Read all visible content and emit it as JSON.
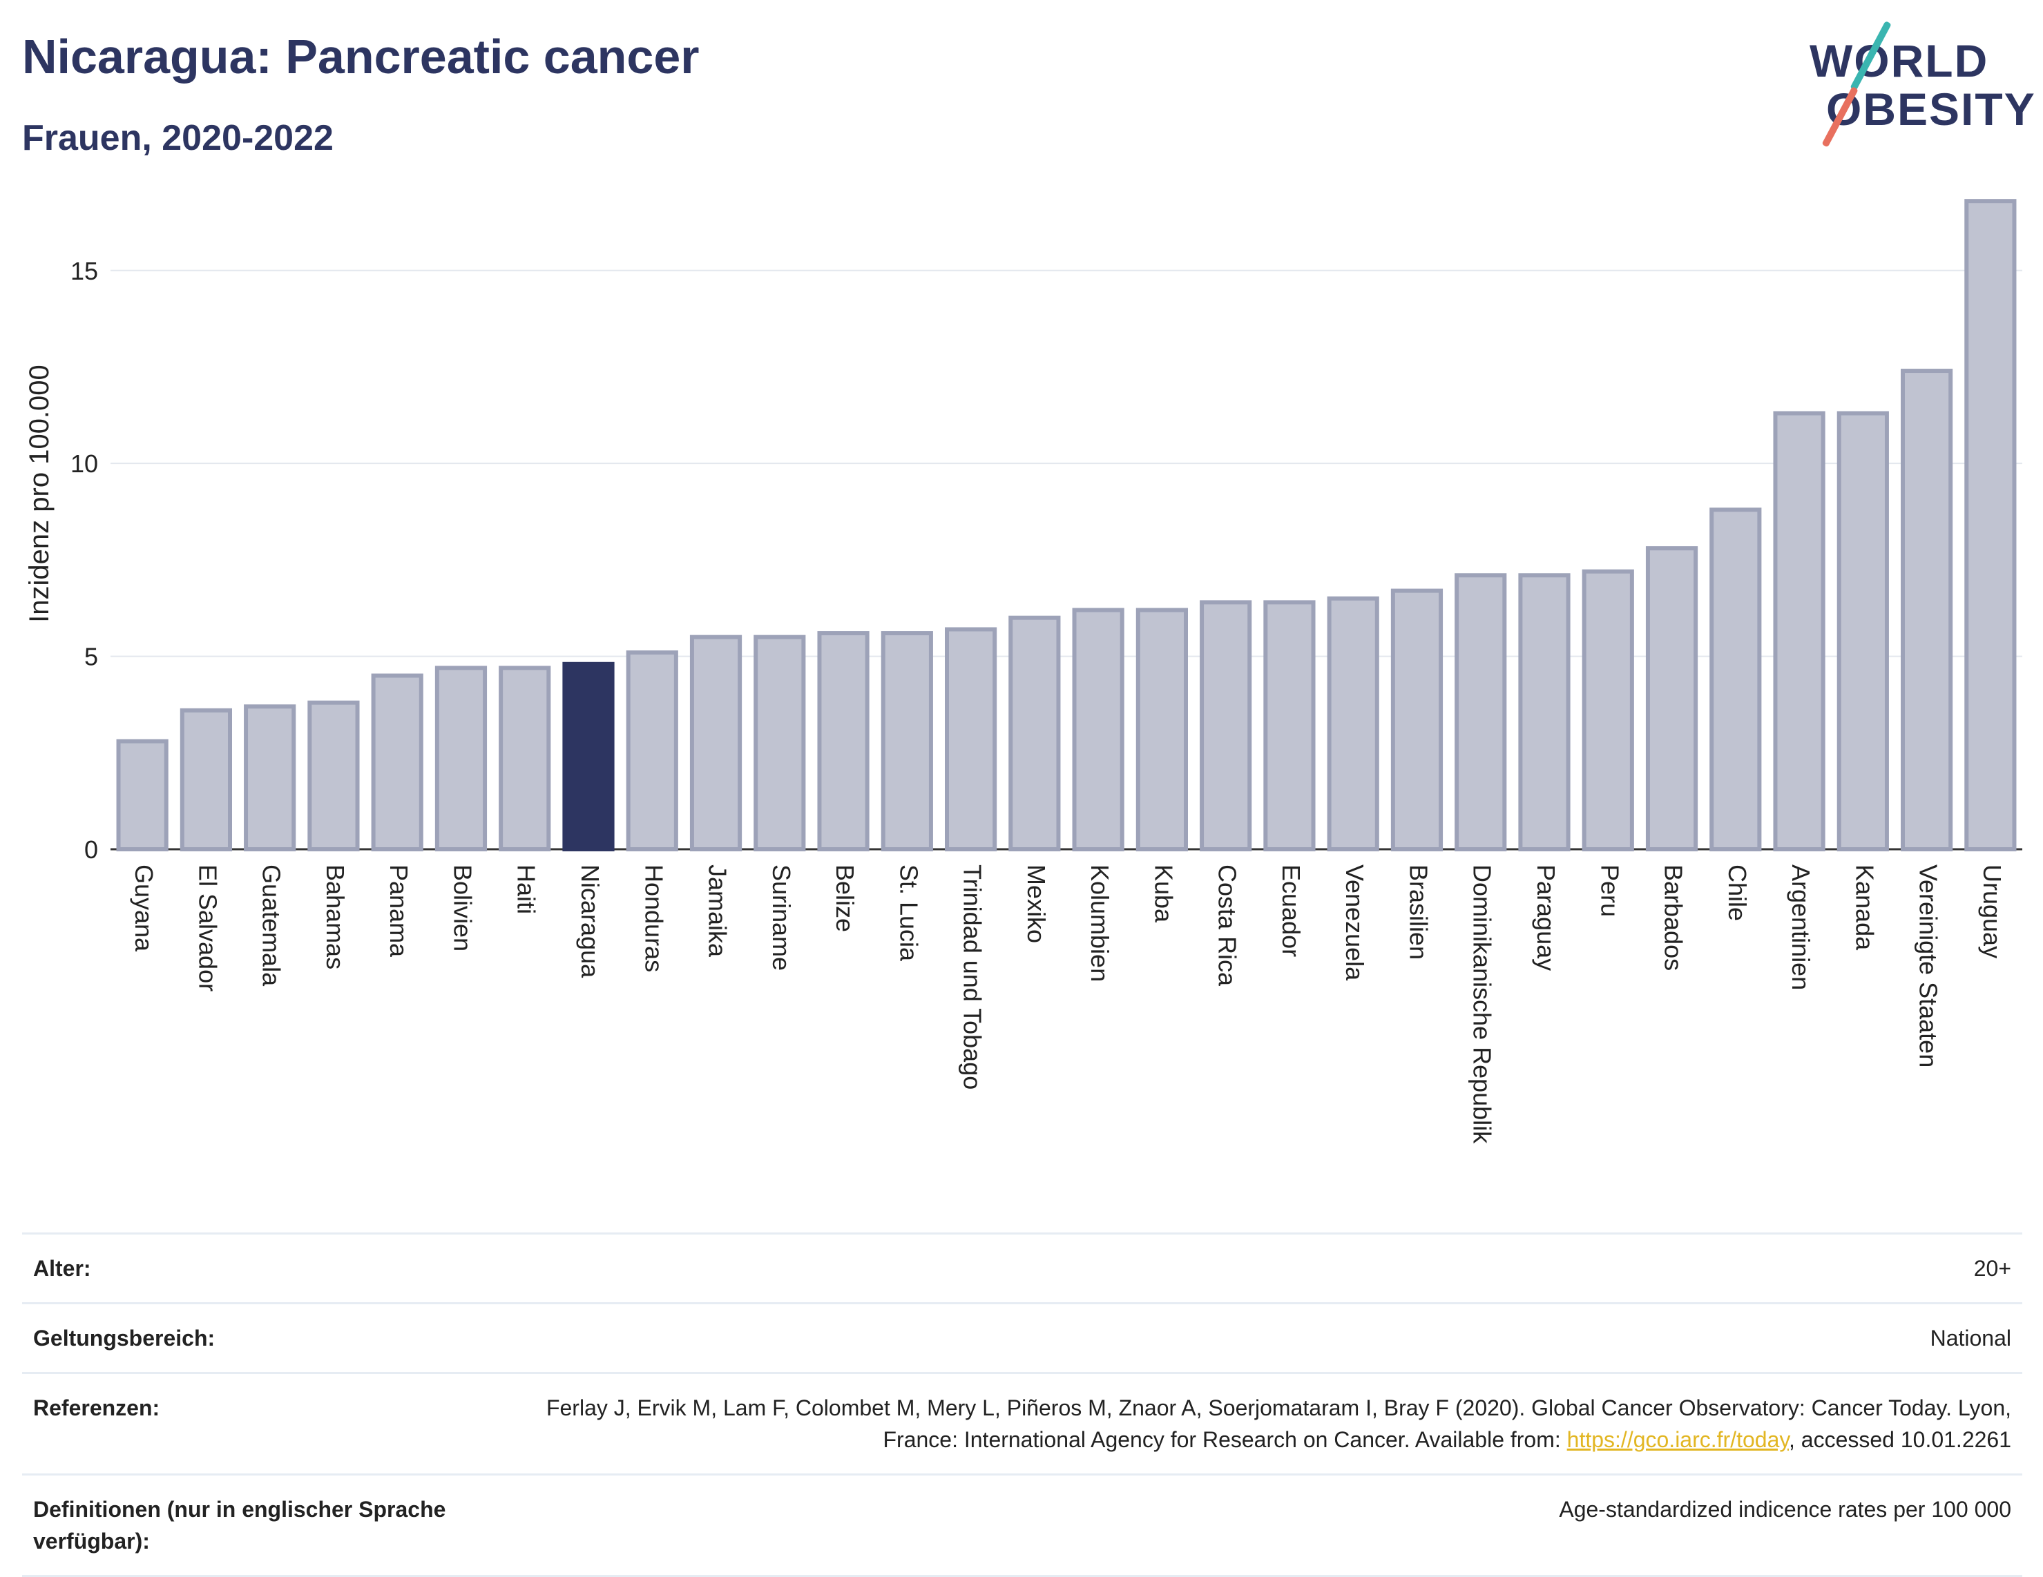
{
  "header": {
    "title": "Nicaragua: Pancreatic cancer",
    "subtitle": "Frauen, 2020-2022"
  },
  "logo": {
    "line1": "WORLD",
    "line2": "OBESITY",
    "accent_colors": [
      "#3ab5b0",
      "#e8705e"
    ]
  },
  "chart_data": {
    "type": "bar",
    "ylabel": "Inzidenz pro 100.000",
    "ylim": [
      0,
      17
    ],
    "yticks": [
      0,
      5,
      10,
      15
    ],
    "grid": true,
    "highlight": "Nicaragua",
    "colors": {
      "bar": "#c0c3d1",
      "bar_border": "#9da2b8",
      "highlight": "#2d3561"
    },
    "categories": [
      "Guyana",
      "El Salvador",
      "Guatemala",
      "Bahamas",
      "Panama",
      "Bolivien",
      "Haiti",
      "Nicaragua",
      "Honduras",
      "Jamaika",
      "Suriname",
      "Belize",
      "St. Lucia",
      "Trinidad und Tobago",
      "Mexiko",
      "Kolumbien",
      "Kuba",
      "Costa Rica",
      "Ecuador",
      "Venezuela",
      "Brasilien",
      "Dominikanische Republik",
      "Paraguay",
      "Peru",
      "Barbados",
      "Chile",
      "Argentinien",
      "Kanada",
      "Vereinigte Staaten",
      "Uruguay"
    ],
    "values": [
      2.8,
      3.6,
      3.7,
      3.8,
      4.5,
      4.7,
      4.7,
      4.8,
      5.1,
      5.5,
      5.5,
      5.6,
      5.6,
      5.7,
      6.0,
      6.2,
      6.2,
      6.4,
      6.4,
      6.5,
      6.7,
      7.1,
      7.1,
      7.2,
      7.8,
      8.8,
      11.3,
      11.3,
      12.4,
      16.8
    ]
  },
  "meta": {
    "rows": [
      {
        "key": "Alter:",
        "value": "20+"
      },
      {
        "key": "Geltungsbereich:",
        "value": "National"
      },
      {
        "key": "Referenzen:",
        "value_pre": "Ferlay J, Ervik M, Lam F, Colombet M, Mery L, Piñeros M, Znaor A, Soerjomataram I, Bray F (2020). Global Cancer Observatory: Cancer Today. Lyon, France: International Agency for Research on Cancer. Available from: ",
        "link": "https://gco.iarc.fr/today",
        "value_post": ", accessed 10.01.2261"
      },
      {
        "key": "Definitionen (nur in englischer Sprache verfügbar):",
        "value": "Age-standardized indicence rates per 100 000"
      }
    ]
  }
}
